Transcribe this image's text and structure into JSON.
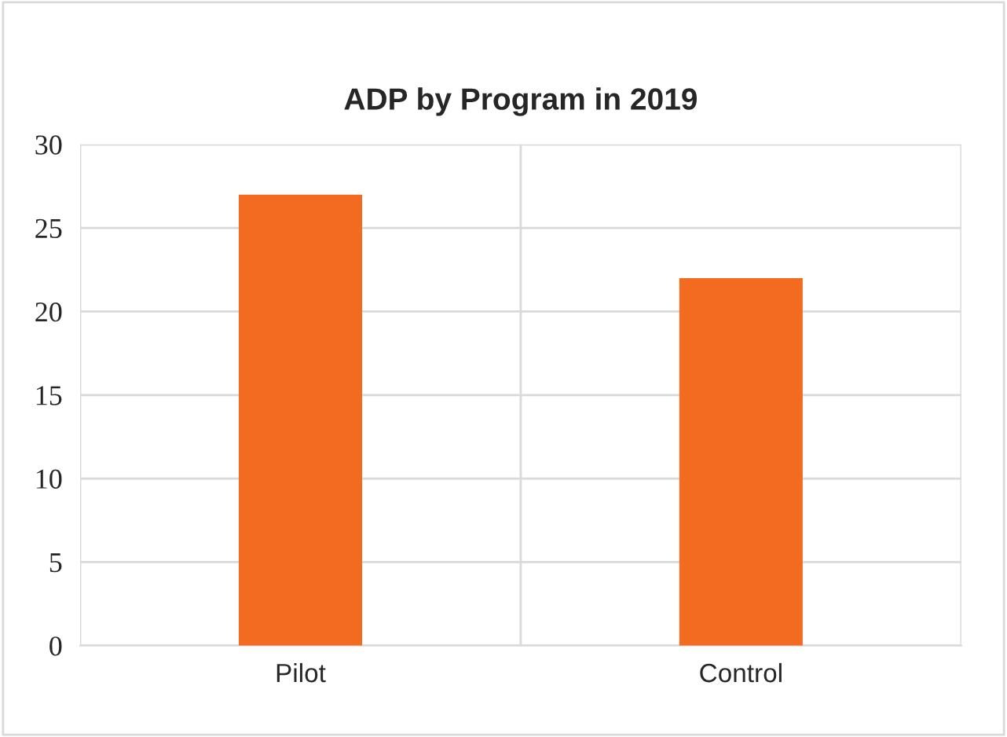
{
  "chart_data": {
    "type": "bar",
    "title": "ADP by Program in 2019",
    "categories": [
      "Pilot",
      "Control"
    ],
    "values": [
      27,
      22
    ],
    "color": "#f26b21",
    "ylim": [
      0,
      30
    ],
    "yticks": [
      0,
      5,
      10,
      15,
      20,
      25,
      30
    ],
    "grid": true,
    "legend": false
  }
}
